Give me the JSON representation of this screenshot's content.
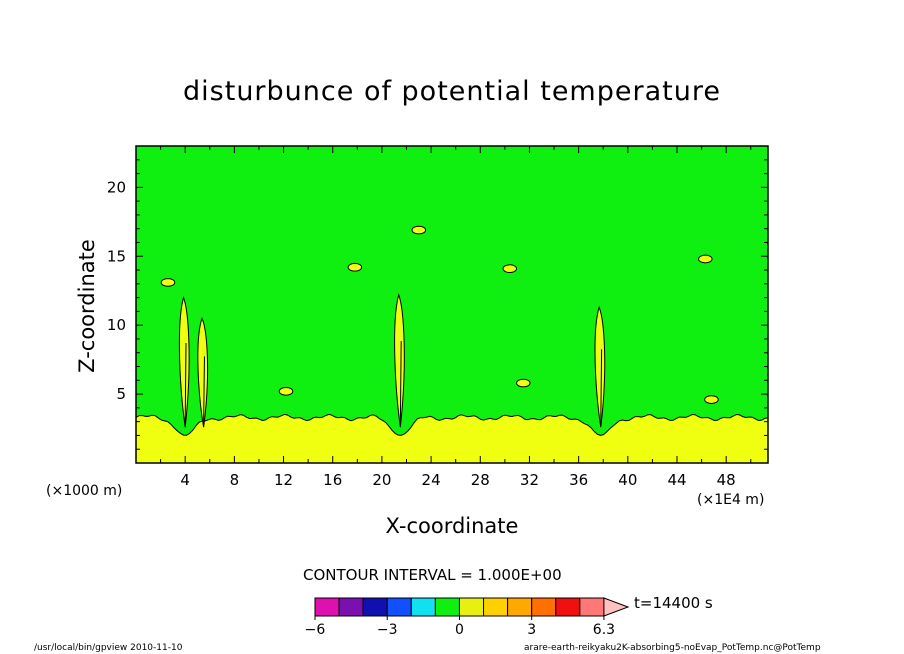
{
  "chart_data": {
    "type": "heatmap",
    "title": "disturbunce of potential temperature",
    "xlabel": "X-coordinate",
    "ylabel": "Z-coordinate",
    "x_unit_label": "(×1E4 m)",
    "y_unit_label": "(×1000 m)",
    "xlim": [
      0,
      51.4
    ],
    "ylim": [
      0,
      23
    ],
    "x_ticks": [
      4,
      8,
      12,
      16,
      20,
      24,
      28,
      32,
      36,
      40,
      44,
      48
    ],
    "y_ticks": [
      5,
      10,
      15,
      20
    ],
    "contour_interval_label": "CONTOUR INTERVAL = 1.000E+00",
    "colorbar": {
      "levels": [
        -6,
        -5,
        -4,
        -3,
        -2,
        -1,
        0,
        1,
        2,
        3,
        4,
        5,
        6.3
      ],
      "tick_labels": [
        "−6",
        "−3",
        "0",
        "3",
        "6.3"
      ],
      "tick_values": [
        -6,
        -3,
        0,
        3,
        6.3
      ],
      "colors": [
        "#e010b0",
        "#7a10b0",
        "#1010b0",
        "#1050ff",
        "#10e0f0",
        "#10f010",
        "#e8f010",
        "#ffd000",
        "#ffa800",
        "#ff7000",
        "#f01010",
        "#ff7878",
        "#ffc0c0"
      ]
    },
    "background_color": "#10f010",
    "positive_color": "#f0ff10",
    "time_label": "t=14400 s",
    "boundary_layer": {
      "top_z": 3.3,
      "dips_at_x": [
        4,
        21.5,
        37.8
      ],
      "dip_min_z": 2
    },
    "plumes": [
      {
        "x": 4,
        "z_top": 12
      },
      {
        "x": 5.5,
        "z_top": 10.5
      },
      {
        "x": 21.5,
        "z_top": 12.2
      },
      {
        "x": 37.8,
        "z_top": 11.3
      }
    ],
    "blobs": [
      {
        "x": 12.2,
        "z": 5.2
      },
      {
        "x": 31.5,
        "z": 5.8
      },
      {
        "x": 46.8,
        "z": 4.6
      },
      {
        "x": 46.3,
        "z": 14.8
      },
      {
        "x": 17.8,
        "z": 14.2
      },
      {
        "x": 30.4,
        "z": 14.1
      },
      {
        "x": 2.6,
        "z": 13.1
      },
      {
        "x": 23,
        "z": 16.9
      }
    ]
  },
  "footer": {
    "left": "/usr/local/bin/gpview   2010-11-10",
    "right": "arare-earth-reikyaku2K-absorbing5-noEvap_PotTemp.nc@PotTemp"
  }
}
